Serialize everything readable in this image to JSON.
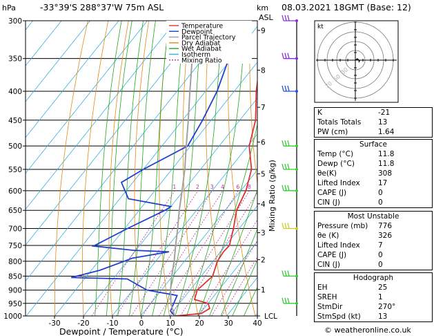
{
  "header": {
    "hpa_label": "hPa",
    "location": "-33°39'S  288°37'W  75m  ASL",
    "km_label": "km",
    "asl_label": "ASL",
    "datetime": "08.03.2021  18GMT  (Base: 12)"
  },
  "chart_data": {
    "type": "line",
    "plot_kind": "skew-t log-p",
    "xlabel": "Dewpoint / Temperature (°C)",
    "mixing_ratio_label": "Mixing Ratio (g/kg)",
    "x_ticks": [
      -30,
      -20,
      -10,
      0,
      10,
      20,
      30,
      40
    ],
    "pressure_ticks": [
      300,
      350,
      400,
      450,
      500,
      550,
      600,
      650,
      700,
      750,
      800,
      850,
      900,
      950,
      1000
    ],
    "xlim": [
      -40,
      40
    ],
    "ylim_hpa": [
      1000,
      300
    ],
    "km_ticks": [
      {
        "label": "9",
        "p": 312
      },
      {
        "label": "8",
        "p": 367
      },
      {
        "label": "7",
        "p": 427
      },
      {
        "label": "6",
        "p": 492
      },
      {
        "label": "5",
        "p": 560
      },
      {
        "label": "4",
        "p": 633
      },
      {
        "label": "3",
        "p": 712
      },
      {
        "label": "2",
        "p": 795
      },
      {
        "label": "1",
        "p": 898
      },
      {
        "label": "LCL",
        "p": 1000
      }
    ],
    "mixing_ratio_values": [
      "1",
      "2",
      "3",
      "4",
      "6",
      "8",
      "10",
      "15",
      "20",
      "25"
    ],
    "legend": [
      {
        "name": "Temperature",
        "color": "#e03030",
        "dash": ""
      },
      {
        "name": "Dewpoint",
        "color": "#2040d0",
        "dash": ""
      },
      {
        "name": "Parcel Trajectory",
        "color": "#a0a0a0",
        "dash": ""
      },
      {
        "name": "Dry Adiabat",
        "color": "#e08a10",
        "dash": ""
      },
      {
        "name": "Wet Adiabat",
        "color": "#1fa81f",
        "dash": ""
      },
      {
        "name": "Isotherm",
        "color": "#33b0e0",
        "dash": ""
      },
      {
        "name": "Mixing Ratio",
        "color": "#c0309a",
        "dash": "2,2"
      }
    ],
    "series": [
      {
        "name": "Temperature",
        "color": "#e03030",
        "points": [
          [
            1000,
            12
          ],
          [
            990,
            20.5
          ],
          [
            970,
            22
          ],
          [
            950,
            20
          ],
          [
            935,
            14.2
          ],
          [
            900,
            12.5
          ],
          [
            850,
            14
          ],
          [
            800,
            11.5
          ],
          [
            770,
            11
          ],
          [
            750,
            11.3
          ],
          [
            700,
            8
          ],
          [
            650,
            4
          ],
          [
            600,
            1.8
          ],
          [
            550,
            -2.2
          ],
          [
            500,
            -9.5
          ],
          [
            450,
            -14.5
          ],
          [
            400,
            -22.3
          ],
          [
            350,
            -30
          ],
          [
            300,
            -38
          ]
        ]
      },
      {
        "name": "Dewpoint",
        "color": "#2040d0",
        "points": [
          [
            1000,
            11.8
          ],
          [
            980,
            9
          ],
          [
            950,
            8
          ],
          [
            920,
            7
          ],
          [
            900,
            -5
          ],
          [
            860,
            -15
          ],
          [
            855,
            -35
          ],
          [
            830,
            -27
          ],
          [
            790,
            -19
          ],
          [
            770,
            -8
          ],
          [
            765,
            -21
          ],
          [
            752,
            -36
          ],
          [
            700,
            -29
          ],
          [
            650,
            -21
          ],
          [
            640,
            -20
          ],
          [
            620,
            -37
          ],
          [
            580,
            -44
          ],
          [
            550,
            -40
          ],
          [
            500,
            -31
          ],
          [
            450,
            -33
          ],
          [
            400,
            -36
          ],
          [
            350,
            -41
          ],
          [
            333,
            -46
          ],
          [
            320,
            -53
          ],
          [
            300,
            -52
          ]
        ]
      },
      {
        "name": "Parcel Trajectory",
        "color": "#a0a0a0",
        "points": [
          [
            1000,
            11.8
          ],
          [
            950,
            7
          ],
          [
            900,
            3.2
          ],
          [
            850,
            -0.3
          ],
          [
            800,
            -3.6
          ],
          [
            750,
            -7.5
          ],
          [
            700,
            -11.5
          ],
          [
            650,
            -16
          ],
          [
            600,
            -20.5
          ],
          [
            550,
            -25.5
          ],
          [
            500,
            -31.5
          ],
          [
            450,
            -38
          ],
          [
            400,
            -45.5
          ],
          [
            350,
            -53.8
          ],
          [
            300,
            -63
          ]
        ]
      }
    ]
  },
  "hodograph": {
    "label": "kt",
    "ring_labels": [
      "70",
      "50",
      "30"
    ]
  },
  "indices": {
    "rows": [
      {
        "key": "K",
        "value": "-21"
      },
      {
        "key": "Totals Totals",
        "value": "13"
      },
      {
        "key": "PW (cm)",
        "value": "1.64"
      }
    ]
  },
  "surface": {
    "title": "Surface",
    "rows": [
      {
        "key": "Temp (°C)",
        "value": "11.8"
      },
      {
        "key": "Dewp (°C)",
        "value": "11.8"
      },
      {
        "key": "θe(K)",
        "value": "308"
      },
      {
        "key": "Lifted Index",
        "value": "17"
      },
      {
        "key": "CAPE (J)",
        "value": "0"
      },
      {
        "key": "CIN (J)",
        "value": "0"
      }
    ]
  },
  "most_unstable": {
    "title": "Most Unstable",
    "rows": [
      {
        "key": "Pressure (mb)",
        "value": "776"
      },
      {
        "key": "θe (K)",
        "value": "326"
      },
      {
        "key": "Lifted Index",
        "value": "7"
      },
      {
        "key": "CAPE (J)",
        "value": "0"
      },
      {
        "key": "CIN (J)",
        "value": "0"
      }
    ]
  },
  "hodograph_table": {
    "title": "Hodograph",
    "rows": [
      {
        "key": "EH",
        "value": "25"
      },
      {
        "key": "SREH",
        "value": "1"
      },
      {
        "key": "StmDir",
        "value": "270°"
      },
      {
        "key": "StmSpd (kt)",
        "value": "13"
      }
    ]
  },
  "footer": {
    "copyright": "© weatheronline.co.uk"
  },
  "colors": {
    "temperature": "#e03030",
    "dewpoint": "#2040d0",
    "parcel": "#a0a0a0",
    "dry_adiabat": "#e08a10",
    "wet_adiabat": "#1fa81f",
    "isotherm": "#33b0e0",
    "mixing_ratio": "#c0309a",
    "wind_purple": "#8a2be2",
    "wind_blue": "#2050e0",
    "wind_green": "#33cc33",
    "wind_yellow": "#cccc22"
  }
}
